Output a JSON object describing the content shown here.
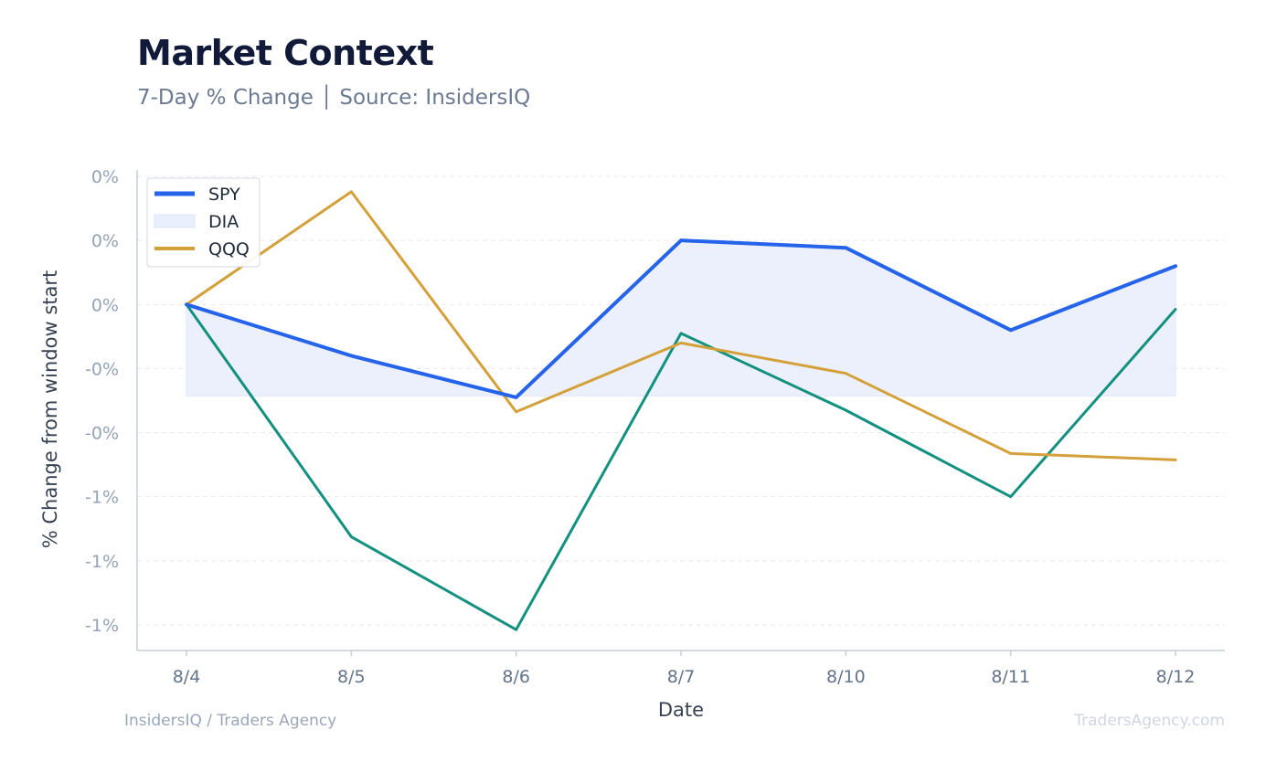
{
  "header": {
    "title": "Market Context",
    "subtitle": "7-Day % Change │ Source: InsidersIQ"
  },
  "footer": {
    "left": "InsidersIQ / Traders Agency",
    "right": "TradersAgency.com"
  },
  "colors": {
    "spy": "#2563eb",
    "dia_line": "#13907f",
    "dia_fill": "#e9effc",
    "qqq": "#d4a03a",
    "grid": "#e5e9f0",
    "axis": "#c5cdd8",
    "tick_text": "#94a3b8",
    "label_text": "#374151"
  },
  "chart_data": {
    "type": "line",
    "xlabel": "Date",
    "ylabel": "% Change from window start",
    "categories": [
      "8/4",
      "8/5",
      "8/6",
      "8/7",
      "8/10",
      "8/11",
      "8/12"
    ],
    "y_tick_labels": [
      "0%",
      "0%",
      "0%",
      "-0%",
      "-0%",
      "-1%",
      "-1%",
      "-1%"
    ],
    "y_ticks": [
      0.4,
      0.2,
      0.0,
      -0.2,
      -0.4,
      -0.6,
      -0.8,
      -1.0
    ],
    "ylim": [
      -1.08,
      0.42
    ],
    "grid": true,
    "legend_position": "top-left",
    "series": [
      {
        "name": "SPY",
        "style": "line",
        "values": [
          0.0,
          -0.16,
          -0.29,
          0.2,
          0.177,
          -0.08,
          0.12
        ]
      },
      {
        "name": "DIA",
        "style": "band",
        "values": [
          0.0,
          -0.725,
          -1.015,
          -0.09,
          -0.33,
          -0.6,
          -0.015
        ]
      },
      {
        "name": "QQQ",
        "style": "line",
        "values": [
          0.0,
          0.352,
          -0.335,
          -0.12,
          -0.215,
          -0.465,
          -0.485
        ]
      }
    ],
    "shaded_band": {
      "series": "SPY",
      "baseline": -0.285
    }
  }
}
